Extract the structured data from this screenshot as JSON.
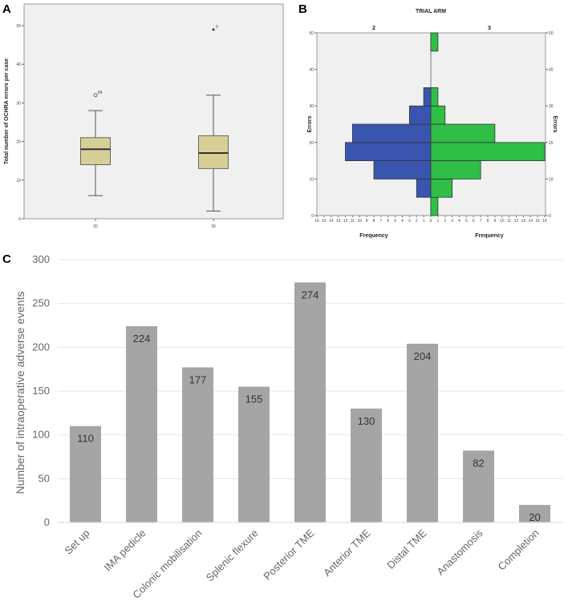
{
  "chart_data": [
    {
      "panel": "A",
      "type": "box",
      "ylabel": "Total number of OCHRA errors per case",
      "xlabel": "",
      "ylim": [
        0,
        50
      ],
      "yticks": [
        0,
        10,
        20,
        30,
        40,
        50
      ],
      "categories": [
        "20",
        "30"
      ],
      "boxes": [
        {
          "min": 6,
          "q1": 14,
          "median": 18,
          "q3": 21,
          "max": 28,
          "outliers": [
            {
              "value": 32,
              "label": "84",
              "kind": "circle"
            }
          ]
        },
        {
          "min": 2,
          "q1": 13,
          "median": 17,
          "q3": 21.5,
          "max": 32,
          "outliers": [
            {
              "value": 49,
              "label": "9",
              "kind": "star"
            }
          ]
        }
      ],
      "colors": {
        "box": "#d8cf96",
        "background": "#f0f0f0"
      }
    },
    {
      "panel": "B",
      "type": "bar",
      "title": "TRIAL ARM",
      "ylabel": "Errors",
      "xlabel": "Frequency",
      "ylim": [
        0,
        50
      ],
      "yticks": [
        0,
        10,
        20,
        30,
        40,
        50
      ],
      "xlim": [
        0,
        16
      ],
      "bin_edges": [
        0,
        5,
        10,
        15,
        20,
        25,
        30,
        35,
        40,
        45,
        50
      ],
      "series": [
        {
          "name": "2",
          "side": "left",
          "color": "#3a55b0",
          "values": [
            0,
            2,
            8,
            12,
            11,
            3,
            1,
            0,
            0,
            0
          ]
        },
        {
          "name": "3",
          "side": "right",
          "color": "#2fbe46",
          "values": [
            1,
            3,
            7,
            16,
            9,
            2,
            1,
            0,
            0,
            1
          ]
        }
      ]
    },
    {
      "panel": "C",
      "type": "bar",
      "title": "",
      "xlabel": "",
      "ylabel": "Number of intraoperative adverse events",
      "ylim": [
        0,
        300
      ],
      "yticks": [
        0,
        50,
        100,
        150,
        200,
        250,
        300
      ],
      "categories": [
        "Set up",
        "IMA pedicle",
        "Colonic mobilisation",
        "Splenic flexure",
        "Posterior TME",
        "Anterior TME",
        "Distal TME",
        "Anastomosis",
        "Completion"
      ],
      "values": [
        110,
        224,
        177,
        155,
        274,
        130,
        204,
        82,
        20
      ],
      "color": "#a5a5a5"
    }
  ]
}
